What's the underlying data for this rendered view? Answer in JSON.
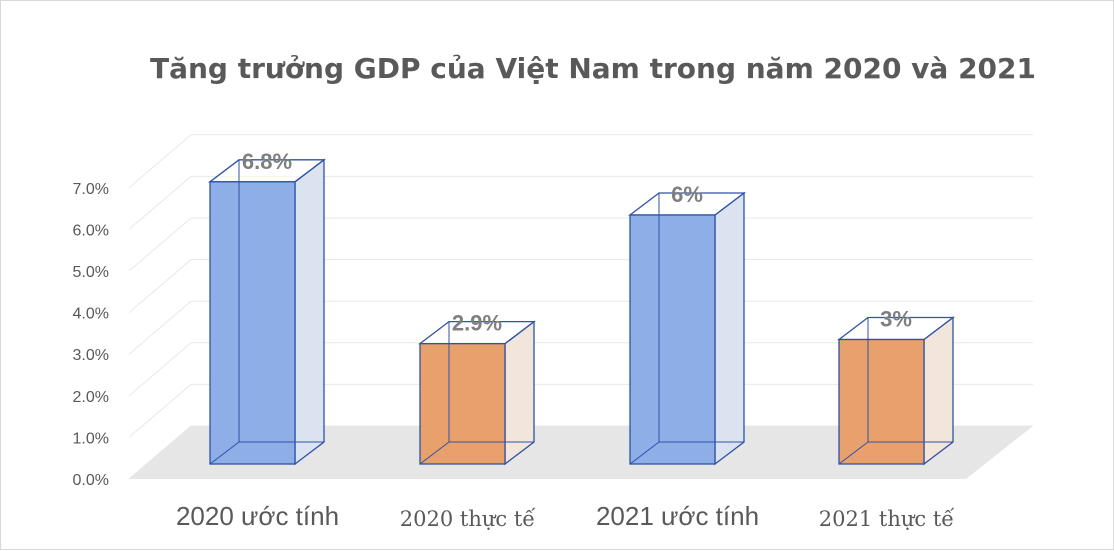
{
  "chart_data": {
    "type": "bar",
    "title": "Tăng trưởng GDP của Việt Nam trong năm 2020 và 2021",
    "categories": [
      "2020 ước tính",
      "2020 thực tế",
      "2021 ước tính",
      "2021 thực tế"
    ],
    "values": [
      6.8,
      2.9,
      6.0,
      3.0
    ],
    "data_labels": [
      "6.8%",
      "2.9%",
      "6%",
      "3%"
    ],
    "ylim": [
      0,
      7
    ],
    "yticks": [
      "0.0%",
      "1.0%",
      "2.0%",
      "3.0%",
      "4.0%",
      "5.0%",
      "6.0%",
      "7.0%"
    ],
    "xlabel": "",
    "ylabel": "",
    "grid": true,
    "legend": "none",
    "style": "3d-column",
    "colors": {
      "estimate_front": "#8eaee8",
      "estimate_side": "#dce3f0",
      "actual_front": "#e8a06c",
      "actual_side": "#f1e5dc",
      "edge": "#2f52a6",
      "floor": "#e6e6e6",
      "gridline": "#e8e8e8"
    }
  }
}
